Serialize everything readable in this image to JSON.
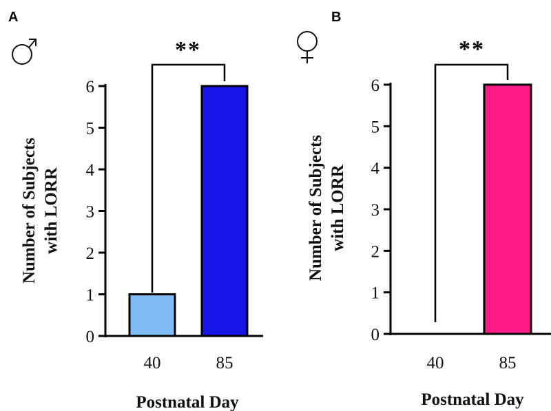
{
  "chart_data": [
    {
      "panel": "A",
      "sex_symbol": "male",
      "type": "bar",
      "categories": [
        "40",
        "85"
      ],
      "values": [
        1,
        6
      ],
      "colors": [
        "#7fbcf5",
        "#1515e6"
      ],
      "ylabel_lines": [
        "Number of Subjects",
        "with LORR"
      ],
      "xlabel": "Postnatal Day",
      "ylim": [
        0,
        6
      ],
      "yticks": [
        "0",
        "1",
        "2",
        "3",
        "4",
        "5",
        "6"
      ],
      "significance": "**"
    },
    {
      "panel": "B",
      "sex_symbol": "female",
      "type": "bar",
      "categories": [
        "40",
        "85"
      ],
      "values": [
        0,
        6
      ],
      "colors": [
        "#ff1a85",
        "#ff1a85"
      ],
      "ylabel_lines": [
        "Number of Subjects",
        "with LORR"
      ],
      "xlabel": "Postnatal Day",
      "ylim": [
        0,
        6
      ],
      "yticks": [
        "0",
        "1",
        "2",
        "3",
        "4",
        "5",
        "6"
      ],
      "significance": "**"
    }
  ]
}
